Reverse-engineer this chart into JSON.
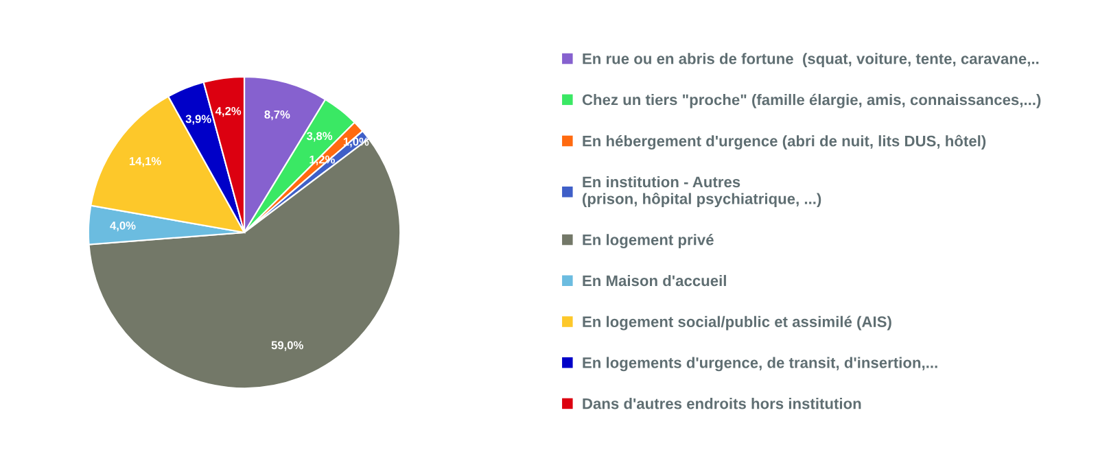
{
  "chart_data": {
    "type": "pie",
    "categories": [
      "En rue ou en abris de fortune  (squat, voiture, tente, caravane,..",
      "Chez un tiers \"proche\" (famille élargie, amis, connaissances,...)",
      "En hébergement d'urgence (abri de nuit, lits DUS, hôtel)",
      "En institution - Autres\n(prison, hôpital psychiatrique, ...)",
      "En logement privé",
      "En Maison d'accueil",
      "En logement social/public et assimilé (AIS)",
      "En logements d'urgence, de transit, d'insertion,...",
      "Dans d'autres endroits hors institution"
    ],
    "values": [
      8.7,
      3.8,
      1.2,
      1.0,
      59.0,
      4.0,
      14.1,
      3.9,
      4.2
    ],
    "value_labels": [
      "8,7%",
      "3,8%",
      "1,2%",
      "1,0%",
      "59,0%",
      "4,0%",
      "14,1%",
      "3,9%",
      "4,2%"
    ],
    "colors": [
      "#8661cf",
      "#3ae864",
      "#ff6a10",
      "#3f5fc8",
      "#737868",
      "#6bbce0",
      "#fdc82a",
      "#0000c8",
      "#dc0010"
    ],
    "legend": "right"
  }
}
